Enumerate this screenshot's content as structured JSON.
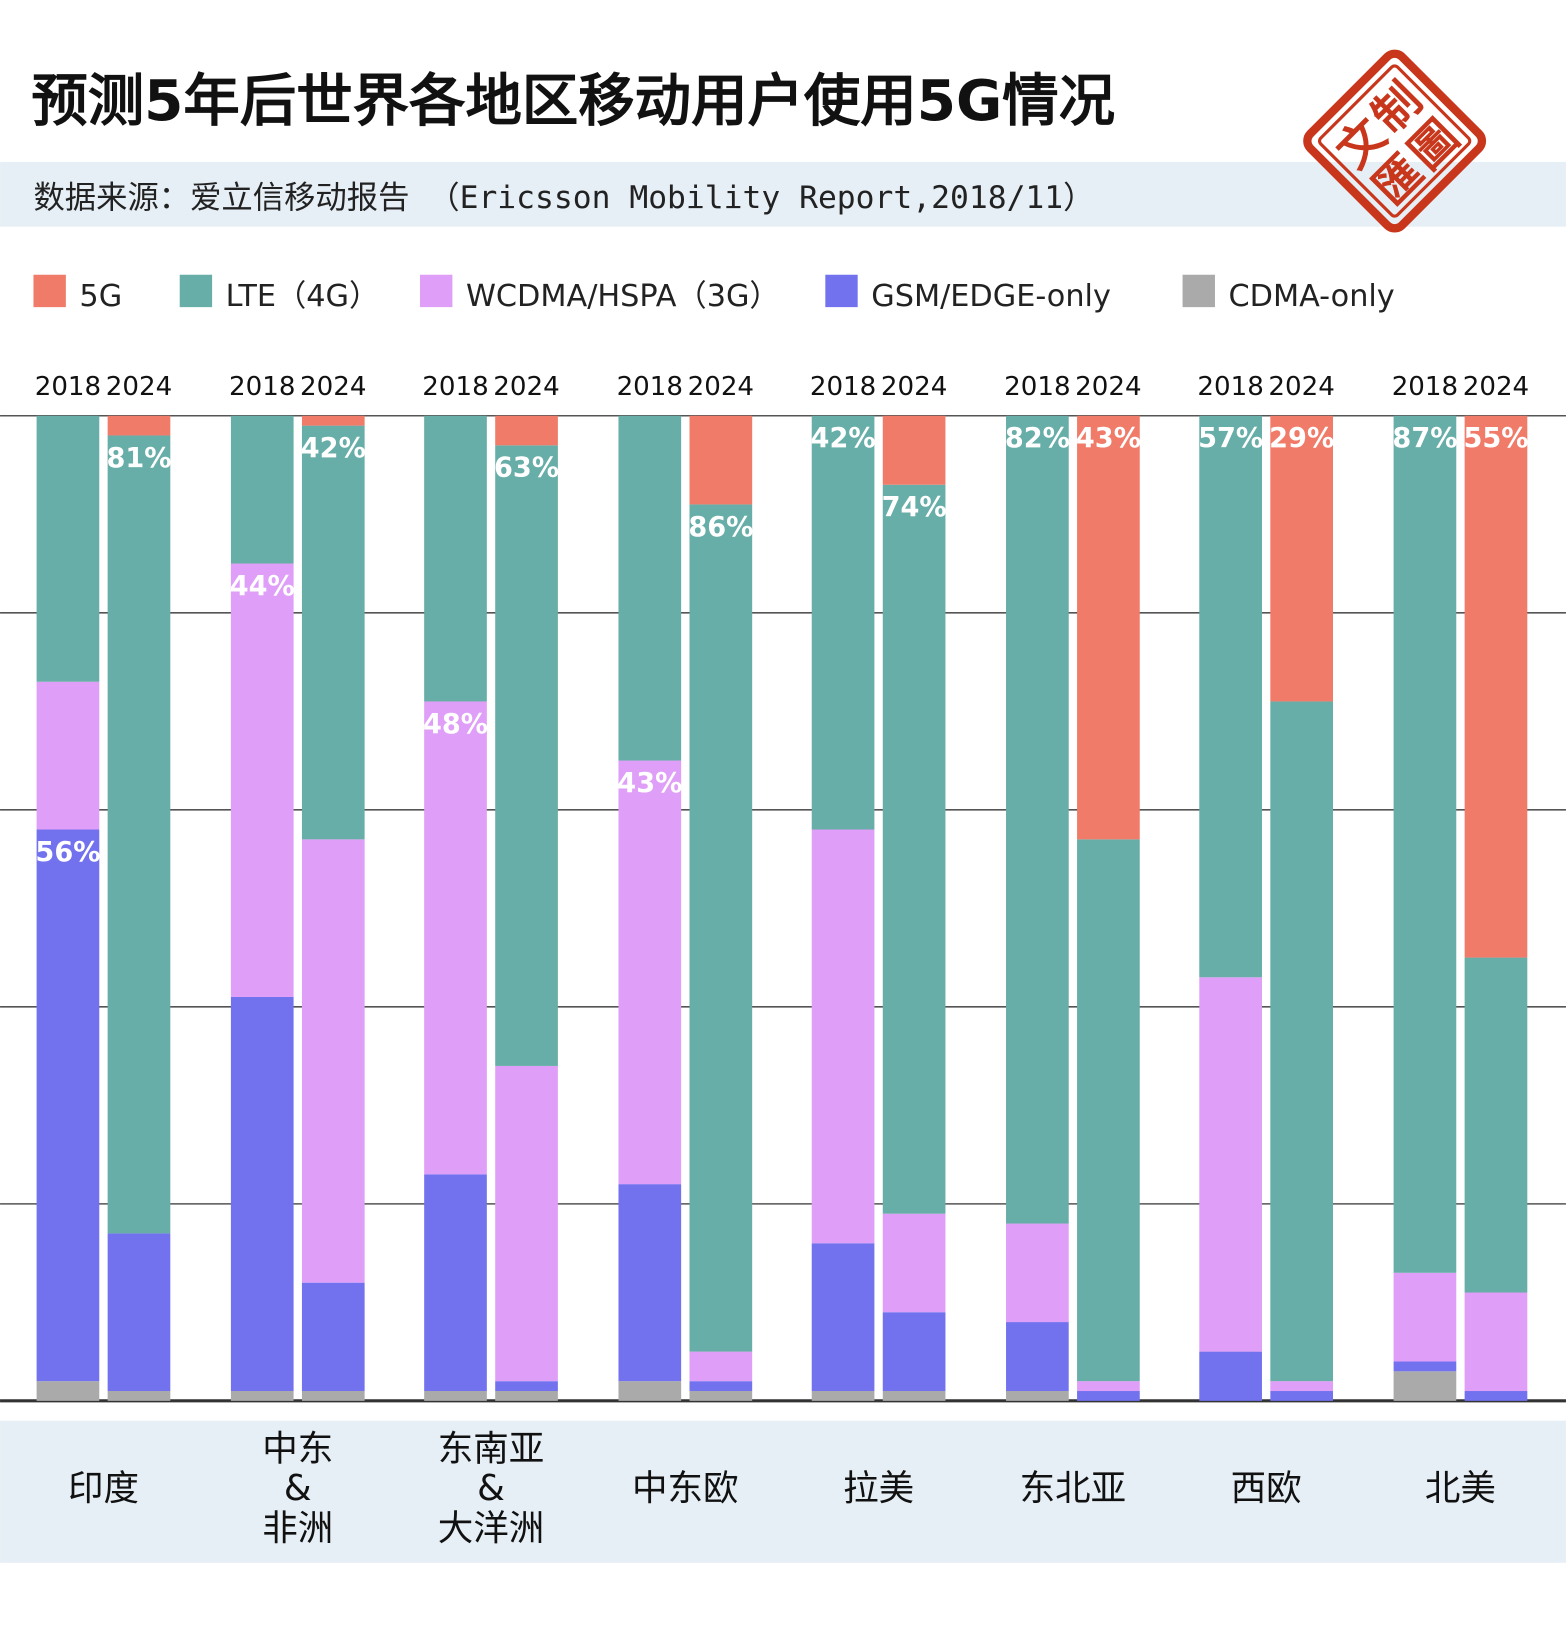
{
  "title": "预测5年后世界各地区移动用户使用5G情况",
  "subtitle": "数据来源：爱立信移动报告 （Ericsson Mobility Report,2018/11）",
  "seal": "制文圖匯",
  "chart_data": {
    "type": "bar",
    "stacked": true,
    "ylim": [
      0,
      100
    ],
    "grid": true,
    "legend_placement": "top",
    "series": [
      {
        "name": "CDMA-only",
        "color": "#aaaaaa"
      },
      {
        "name": "GSM/EDGE-only",
        "color": "#7272ee"
      },
      {
        "name": "WCDMA/HSPA（3G）",
        "color": "#df9ef7"
      },
      {
        "name": "LTE（4G）",
        "color": "#67ada8"
      },
      {
        "name": "5G",
        "color": "#f07b68"
      }
    ],
    "legend_order": [
      4,
      3,
      2,
      1,
      0
    ],
    "groups": [
      {
        "region": [
          "印度"
        ],
        "bars": [
          {
            "year": "2018",
            "values": [
              2,
              56,
              15,
              27,
              0
            ],
            "label": "56%",
            "label_series": 1
          },
          {
            "year": "2024",
            "values": [
              1,
              16,
              0,
              81,
              2
            ],
            "label": "81%",
            "label_series": 3
          }
        ]
      },
      {
        "region": [
          "中东",
          "&",
          "非洲"
        ],
        "bars": [
          {
            "year": "2018",
            "values": [
              1,
              40,
              44,
              15,
              0
            ],
            "label": "44%",
            "label_series": 2
          },
          {
            "year": "2024",
            "values": [
              1,
              11,
              45,
              42,
              1
            ],
            "label": "42%",
            "label_series": 3
          }
        ]
      },
      {
        "region": [
          "东南亚",
          "&",
          "大洋洲"
        ],
        "bars": [
          {
            "year": "2018",
            "values": [
              1,
              22,
              48,
              29,
              0
            ],
            "label": "48%",
            "label_series": 2
          },
          {
            "year": "2024",
            "values": [
              1,
              1,
              32,
              63,
              3
            ],
            "label": "63%",
            "label_series": 3
          }
        ]
      },
      {
        "region": [
          "中东欧"
        ],
        "bars": [
          {
            "year": "2018",
            "values": [
              2,
              20,
              43,
              35,
              0
            ],
            "label": "43%",
            "label_series": 2
          },
          {
            "year": "2024",
            "values": [
              1,
              1,
              3,
              86,
              9
            ],
            "label": "86%",
            "label_series": 3
          }
        ]
      },
      {
        "region": [
          "拉美"
        ],
        "bars": [
          {
            "year": "2018",
            "values": [
              1,
              15,
              42,
              42,
              0
            ],
            "label": "42%",
            "label_series": 3
          },
          {
            "year": "2024",
            "values": [
              1,
              8,
              10,
              74,
              7
            ],
            "label": "74%",
            "label_series": 3
          }
        ]
      },
      {
        "region": [
          "东北亚"
        ],
        "bars": [
          {
            "year": "2018",
            "values": [
              1,
              7,
              10,
              82,
              0
            ],
            "label": "82%",
            "label_series": 3
          },
          {
            "year": "2024",
            "values": [
              0,
              1,
              1,
              55,
              43
            ],
            "label": "43%",
            "label_series": 4
          }
        ]
      },
      {
        "region": [
          "西欧"
        ],
        "bars": [
          {
            "year": "2018",
            "values": [
              0,
              5,
              38,
              57,
              0
            ],
            "label": "57%",
            "label_series": 3
          },
          {
            "year": "2024",
            "values": [
              0,
              1,
              1,
              69,
              29
            ],
            "label": "29%",
            "label_series": 4
          }
        ]
      },
      {
        "region": [
          "北美"
        ],
        "bars": [
          {
            "year": "2018",
            "values": [
              3,
              1,
              9,
              87,
              0
            ],
            "label": "87%",
            "label_series": 3
          },
          {
            "year": "2024",
            "values": [
              0,
              1,
              10,
              34,
              55
            ],
            "label": "55%",
            "label_series": 4
          }
        ]
      }
    ]
  }
}
